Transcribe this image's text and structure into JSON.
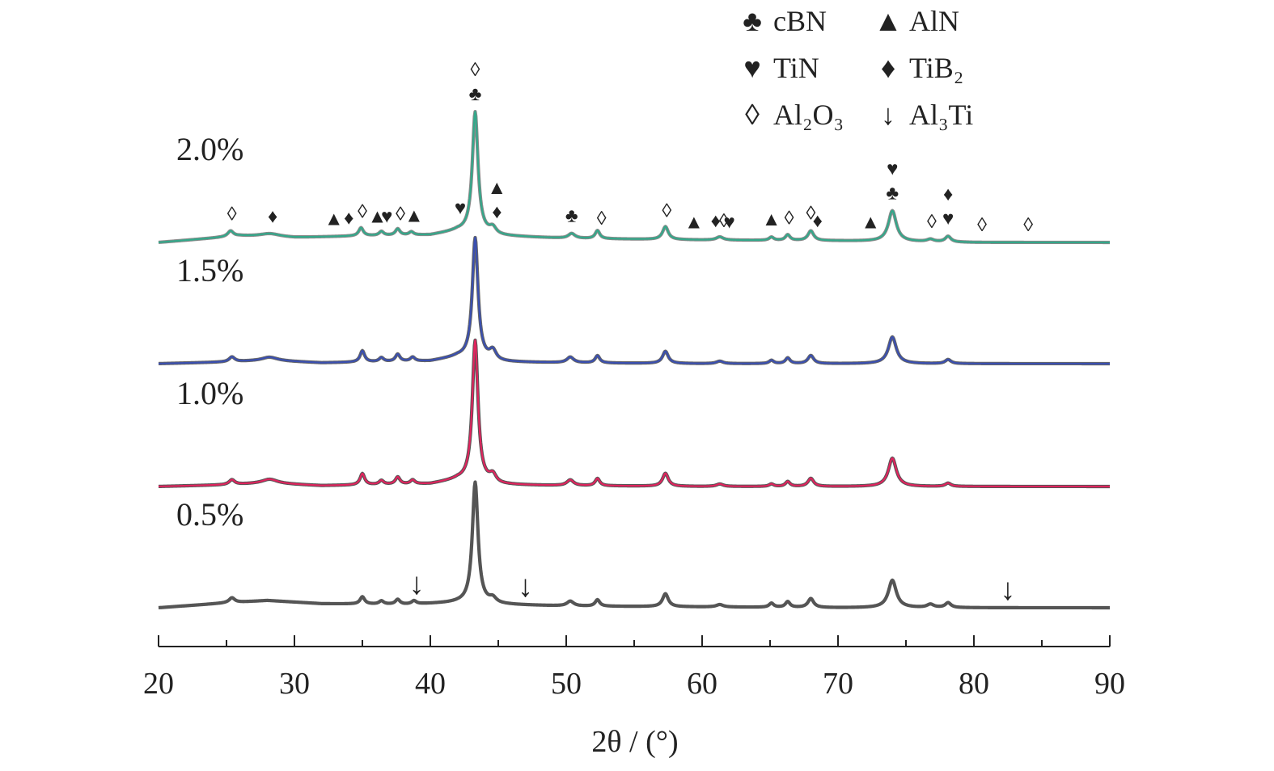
{
  "chart_data": {
    "type": "line",
    "xlabel": "2θ / (°)",
    "xlim": [
      20,
      90
    ],
    "x_ticks": [
      20,
      30,
      40,
      50,
      60,
      70,
      80,
      90
    ],
    "ylabel": "",
    "grid": false,
    "legend_position": "top-right",
    "legend": [
      {
        "symbol": "♣",
        "label": "cBN",
        "sub": ""
      },
      {
        "symbol": "▲",
        "label": "AlN",
        "sub": ""
      },
      {
        "symbol": "♥",
        "label": "TiN",
        "sub": ""
      },
      {
        "symbol": "♦",
        "label": "TiB₂",
        "sub": ""
      },
      {
        "symbol": "◊",
        "label": "Al₂O₃",
        "sub": ""
      },
      {
        "symbol": "↓",
        "label": "Al₃Ti",
        "sub": ""
      }
    ],
    "series": [
      {
        "name": "2.0%",
        "color": "#33a88a",
        "edge_color": "#8a8a8a",
        "baseline": [
          [
            20,
            0
          ],
          [
            26,
            8
          ],
          [
            30,
            6
          ],
          [
            35,
            8
          ],
          [
            40,
            9
          ],
          [
            42,
            14
          ],
          [
            45,
            8
          ],
          [
            50,
            5
          ],
          [
            60,
            3
          ],
          [
            70,
            2
          ],
          [
            80,
            0
          ],
          [
            90,
            0
          ]
        ],
        "peaks": [
          [
            25.3,
            7,
            0.25
          ],
          [
            28.2,
            4,
            0.9
          ],
          [
            34.9,
            10,
            0.2
          ],
          [
            36.4,
            5,
            0.2
          ],
          [
            37.6,
            8,
            0.2
          ],
          [
            38.6,
            4,
            0.2
          ],
          [
            43.3,
            150,
            0.25
          ],
          [
            44.6,
            8,
            0.3
          ],
          [
            50.4,
            6,
            0.3
          ],
          [
            52.3,
            10,
            0.2
          ],
          [
            57.3,
            16,
            0.25
          ],
          [
            61.3,
            4,
            0.3
          ],
          [
            65.1,
            4,
            0.2
          ],
          [
            66.3,
            7,
            0.2
          ],
          [
            68.0,
            12,
            0.25
          ],
          [
            74.0,
            38,
            0.35
          ],
          [
            76.8,
            3,
            0.3
          ],
          [
            78.1,
            7,
            0.25
          ]
        ]
      },
      {
        "name": "1.5%",
        "color": "#3a4fb0",
        "edge_color": "#666666",
        "baseline": [
          [
            20,
            0
          ],
          [
            25,
            2
          ],
          [
            28,
            4
          ],
          [
            32,
            1
          ],
          [
            40,
            3
          ],
          [
            42,
            8
          ],
          [
            45,
            2
          ],
          [
            50,
            1
          ],
          [
            60,
            0
          ],
          [
            70,
            0
          ],
          [
            80,
            0
          ],
          [
            90,
            0
          ]
        ],
        "peaks": [
          [
            25.4,
            6,
            0.25
          ],
          [
            28.2,
            4,
            0.7
          ],
          [
            35.0,
            14,
            0.2
          ],
          [
            36.4,
            5,
            0.2
          ],
          [
            37.6,
            9,
            0.2
          ],
          [
            38.7,
            5,
            0.2
          ],
          [
            43.3,
            150,
            0.25
          ],
          [
            44.6,
            12,
            0.3
          ],
          [
            50.3,
            7,
            0.3
          ],
          [
            52.3,
            9,
            0.2
          ],
          [
            57.3,
            15,
            0.25
          ],
          [
            61.3,
            3,
            0.3
          ],
          [
            65.1,
            4,
            0.2
          ],
          [
            66.3,
            7,
            0.2
          ],
          [
            68.0,
            10,
            0.25
          ],
          [
            74.0,
            33,
            0.35
          ],
          [
            78.1,
            5,
            0.25
          ]
        ]
      },
      {
        "name": "1.0%",
        "color": "#e0245e",
        "edge_color": "#555555",
        "baseline": [
          [
            20,
            0
          ],
          [
            25,
            2
          ],
          [
            28,
            4
          ],
          [
            32,
            1
          ],
          [
            40,
            3
          ],
          [
            42,
            8
          ],
          [
            45,
            2
          ],
          [
            50,
            1
          ],
          [
            60,
            0
          ],
          [
            70,
            0
          ],
          [
            80,
            0
          ],
          [
            90,
            0
          ]
        ],
        "peaks": [
          [
            25.4,
            6,
            0.25
          ],
          [
            28.2,
            5,
            0.7
          ],
          [
            35.0,
            14,
            0.2
          ],
          [
            36.4,
            5,
            0.2
          ],
          [
            37.6,
            9,
            0.2
          ],
          [
            38.7,
            5,
            0.2
          ],
          [
            43.3,
            175,
            0.25
          ],
          [
            44.6,
            10,
            0.3
          ],
          [
            50.3,
            7,
            0.3
          ],
          [
            52.3,
            9,
            0.2
          ],
          [
            57.3,
            16,
            0.25
          ],
          [
            61.3,
            3,
            0.3
          ],
          [
            65.1,
            3,
            0.2
          ],
          [
            66.3,
            6,
            0.2
          ],
          [
            68.0,
            10,
            0.25
          ],
          [
            74.0,
            35,
            0.35
          ],
          [
            78.1,
            4,
            0.25
          ]
        ]
      },
      {
        "name": "0.5%",
        "color": "#555555",
        "edge_color": "#555555",
        "baseline": [
          [
            20,
            0
          ],
          [
            25,
            6
          ],
          [
            28,
            9
          ],
          [
            32,
            5
          ],
          [
            38,
            4
          ],
          [
            42,
            6
          ],
          [
            45,
            4
          ],
          [
            50,
            2
          ],
          [
            60,
            1
          ],
          [
            70,
            0
          ],
          [
            80,
            0
          ],
          [
            90,
            0
          ]
        ],
        "peaks": [
          [
            25.4,
            6,
            0.25
          ],
          [
            35.0,
            9,
            0.2
          ],
          [
            36.4,
            4,
            0.2
          ],
          [
            37.6,
            6,
            0.2
          ],
          [
            38.8,
            4,
            0.2
          ],
          [
            43.3,
            150,
            0.25
          ],
          [
            44.6,
            6,
            0.3
          ],
          [
            50.3,
            6,
            0.3
          ],
          [
            52.3,
            8,
            0.2
          ],
          [
            57.3,
            16,
            0.25
          ],
          [
            61.3,
            3,
            0.3
          ],
          [
            65.1,
            5,
            0.2
          ],
          [
            66.3,
            7,
            0.2
          ],
          [
            68.0,
            11,
            0.25
          ],
          [
            74.0,
            34,
            0.35
          ],
          [
            76.8,
            4,
            0.3
          ],
          [
            78.1,
            6,
            0.25
          ]
        ]
      }
    ],
    "annotations_2_0": [
      {
        "x": 25.4,
        "symbols": [
          "◊"
        ]
      },
      {
        "x": 28.4,
        "symbols": [
          "♦"
        ]
      },
      {
        "x": 32.9,
        "symbols": [
          "▲"
        ]
      },
      {
        "x": 34.0,
        "symbols": [
          "♦"
        ]
      },
      {
        "x": 35.0,
        "symbols": [
          "◊"
        ]
      },
      {
        "x": 36.1,
        "symbols": [
          "▲"
        ]
      },
      {
        "x": 36.8,
        "symbols": [
          "♥"
        ]
      },
      {
        "x": 37.8,
        "symbols": [
          "◊"
        ]
      },
      {
        "x": 38.8,
        "symbols": [
          "▲"
        ]
      },
      {
        "x": 42.2,
        "symbols": [
          "♥"
        ]
      },
      {
        "x": 43.3,
        "symbols": [
          "◊",
          "♣"
        ]
      },
      {
        "x": 44.9,
        "symbols": [
          "▲",
          "♦"
        ]
      },
      {
        "x": 50.4,
        "symbols": [
          "♣"
        ]
      },
      {
        "x": 52.6,
        "symbols": [
          "◊"
        ]
      },
      {
        "x": 57.4,
        "symbols": [
          "◊"
        ]
      },
      {
        "x": 59.4,
        "symbols": [
          "▲"
        ]
      },
      {
        "x": 61.0,
        "symbols": [
          "♦"
        ]
      },
      {
        "x": 61.6,
        "symbols": [
          "◊"
        ]
      },
      {
        "x": 62.0,
        "symbols": [
          "♥"
        ]
      },
      {
        "x": 65.1,
        "symbols": [
          "▲"
        ]
      },
      {
        "x": 66.4,
        "symbols": [
          "◊"
        ]
      },
      {
        "x": 68.0,
        "symbols": [
          "◊"
        ]
      },
      {
        "x": 68.5,
        "symbols": [
          "♦"
        ]
      },
      {
        "x": 72.4,
        "symbols": [
          "▲"
        ]
      },
      {
        "x": 74.0,
        "symbols": [
          "♥",
          "♣"
        ]
      },
      {
        "x": 76.9,
        "symbols": [
          "◊"
        ]
      },
      {
        "x": 78.1,
        "symbols": [
          "♦",
          "♥"
        ]
      },
      {
        "x": 80.6,
        "symbols": [
          "◊"
        ]
      },
      {
        "x": 84.0,
        "symbols": [
          "◊"
        ]
      }
    ],
    "annotations_0_5": [
      {
        "x": 39.0,
        "symbols": [
          "↓"
        ]
      },
      {
        "x": 47.0,
        "symbols": [
          "↓"
        ]
      },
      {
        "x": 82.5,
        "symbols": [
          "↓"
        ]
      }
    ]
  }
}
